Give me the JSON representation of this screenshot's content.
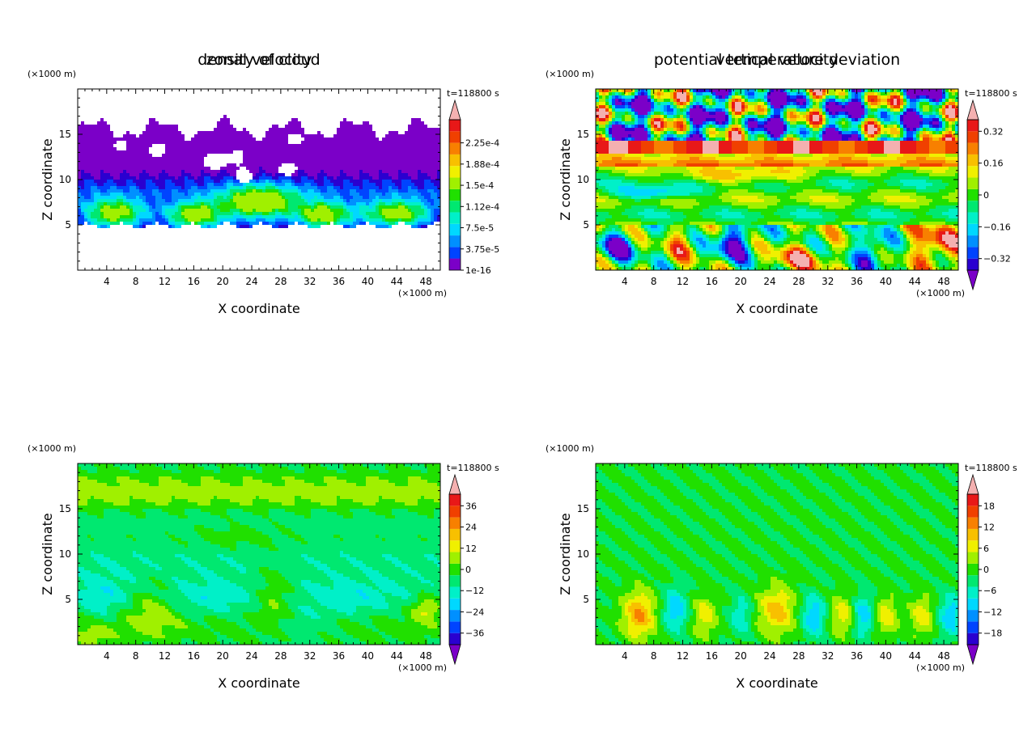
{
  "colors": {
    "palette": [
      "#7b00c8",
      "#2a00d0",
      "#0044ff",
      "#0090ff",
      "#00d8ff",
      "#00f0c8",
      "#00e870",
      "#20e000",
      "#a0f000",
      "#f0f000",
      "#f8c000",
      "#f88000",
      "#f04000",
      "#e81818",
      "#f4b0b0"
    ],
    "white": "#ffffff"
  },
  "chart_data": [
    {
      "type": "heatmap",
      "title": "density of cloud",
      "xlabel": "X coordinate",
      "ylabel": "Z coordinate",
      "x_unit": "(×1000 m)",
      "y_unit": "(×1000 m)",
      "time_label": "t=118800 s",
      "xlim": [
        0,
        50
      ],
      "ylim": [
        0,
        20
      ],
      "xticks": [
        "4",
        "8",
        "12",
        "16",
        "20",
        "24",
        "28",
        "32",
        "36",
        "40",
        "44",
        "48"
      ],
      "yticks": [
        "5",
        "10",
        "15"
      ],
      "colorbar_ticks": [
        "1e-16",
        "3.75e-5",
        "7.5e-5",
        "1.12e-4",
        "1.5e-4",
        "1.88e-4",
        "2.25e-4"
      ],
      "colorbar_arrows": "top",
      "field": "cloud"
    },
    {
      "type": "heatmap",
      "title": "potential temperature deviation",
      "xlabel": "X coordinate",
      "ylabel": "Z coordinate",
      "x_unit": "(×1000 m)",
      "y_unit": "(×1000 m)",
      "time_label": "t=118800 s",
      "xlim": [
        0,
        50
      ],
      "ylim": [
        0,
        20
      ],
      "xticks": [
        "4",
        "8",
        "12",
        "16",
        "20",
        "24",
        "28",
        "32",
        "36",
        "40",
        "44",
        "48"
      ],
      "yticks": [
        "5",
        "10",
        "15"
      ],
      "colorbar_ticks": [
        "−0.32",
        "−0.16",
        "0",
        "0.16",
        "0.32"
      ],
      "colorbar_arrows": "both",
      "field": "theta"
    },
    {
      "type": "heatmap",
      "title": "zonal velocity",
      "xlabel": "X coordinate",
      "ylabel": "Z coordinate",
      "x_unit": "(×1000 m)",
      "y_unit": "(×1000 m)",
      "time_label": "t=118800 s",
      "xlim": [
        0,
        50
      ],
      "ylim": [
        0,
        20
      ],
      "xticks": [
        "4",
        "8",
        "12",
        "16",
        "20",
        "24",
        "28",
        "32",
        "36",
        "40",
        "44",
        "48"
      ],
      "yticks": [
        "5",
        "10",
        "15"
      ],
      "colorbar_ticks": [
        "−36",
        "−24",
        "−12",
        "0",
        "12",
        "24",
        "36"
      ],
      "colorbar_arrows": "both",
      "field": "u"
    },
    {
      "type": "heatmap",
      "title": "vertical velocity",
      "xlabel": "X coordinate",
      "ylabel": "Z coordinate",
      "x_unit": "(×1000 m)",
      "y_unit": "(×1000 m)",
      "time_label": "t=118800 s",
      "xlim": [
        0,
        50
      ],
      "ylim": [
        0,
        20
      ],
      "xticks": [
        "4",
        "8",
        "12",
        "16",
        "20",
        "24",
        "28",
        "32",
        "36",
        "40",
        "44",
        "48"
      ],
      "yticks": [
        "5",
        "10",
        "15"
      ],
      "colorbar_ticks": [
        "−18",
        "−12",
        "−6",
        "0",
        "6",
        "12",
        "18"
      ],
      "colorbar_arrows": "both",
      "field": "w"
    }
  ]
}
